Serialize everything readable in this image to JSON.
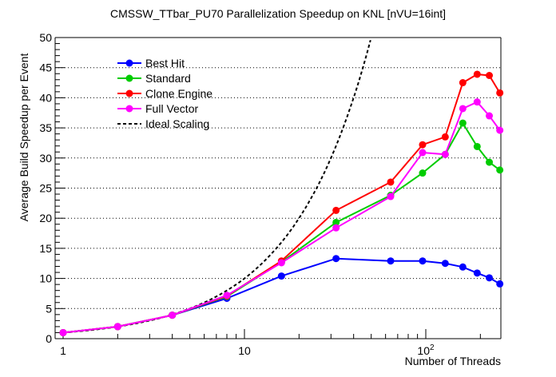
{
  "chart_data": {
    "type": "line",
    "title": "CMSSW_TTbar_PU70 Parallelization Speedup on KNL [nVU=16int]",
    "xlabel": "Number of Threads",
    "ylabel": "Average Build Speedup per Event",
    "xscale": "log",
    "xlim": [
      0.9,
      260
    ],
    "ylim": [
      0,
      50
    ],
    "grid": "y-dotted",
    "legend_position": "top-left",
    "x_ticks": [
      {
        "value": 1,
        "label": "1"
      },
      {
        "value": 10,
        "label": "10"
      },
      {
        "value": 100,
        "label": "10",
        "sup": "2"
      }
    ],
    "y_ticks": [
      0,
      5,
      10,
      15,
      20,
      25,
      30,
      35,
      40,
      45,
      50
    ],
    "x": [
      1,
      2,
      4,
      8,
      16,
      32,
      64,
      96,
      128,
      160,
      192,
      224,
      256
    ],
    "series": [
      {
        "name": "Best Hit",
        "color": "#0000ff",
        "marker": "circle",
        "values": [
          1.0,
          2.0,
          3.9,
          6.7,
          10.4,
          13.3,
          12.9,
          12.9,
          12.5,
          11.9,
          10.9,
          10.1,
          9.1
        ]
      },
      {
        "name": "Standard",
        "color": "#00cc00",
        "marker": "circle",
        "values": [
          1.0,
          2.0,
          3.9,
          7.0,
          12.7,
          19.3,
          23.8,
          27.5,
          30.6,
          35.8,
          31.9,
          29.3,
          28.0
        ]
      },
      {
        "name": "Clone Engine",
        "color": "#ff0000",
        "marker": "circle",
        "values": [
          1.0,
          2.0,
          3.9,
          7.1,
          12.9,
          21.3,
          26.0,
          32.2,
          33.5,
          42.5,
          43.9,
          43.7,
          40.8
        ]
      },
      {
        "name": "Full Vector",
        "color": "#ff00ff",
        "marker": "circle",
        "values": [
          1.0,
          2.0,
          3.9,
          7.2,
          12.6,
          18.4,
          23.6,
          30.9,
          30.6,
          38.2,
          39.3,
          37.0,
          34.6
        ]
      }
    ],
    "ideal": {
      "name": "Ideal Scaling",
      "color": "#000000",
      "style": "dashed",
      "relation": "y = x",
      "x_range": [
        1,
        50
      ]
    }
  }
}
